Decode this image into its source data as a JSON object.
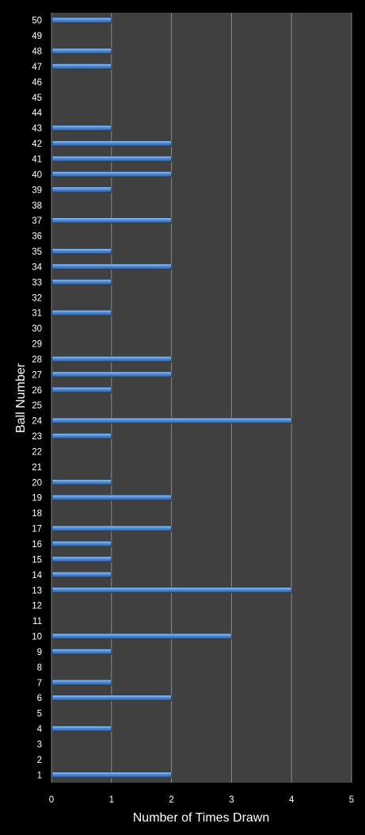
{
  "chart_data": {
    "type": "bar",
    "orientation": "horizontal",
    "title": "",
    "xlabel": "Number of Times Drawn",
    "ylabel": "Ball Number",
    "xlim": [
      0,
      5
    ],
    "xticks": [
      0,
      1,
      2,
      3,
      4,
      5
    ],
    "grid": "vertical",
    "legend": "none",
    "categories": [
      "1",
      "2",
      "3",
      "4",
      "5",
      "6",
      "7",
      "8",
      "9",
      "10",
      "11",
      "12",
      "13",
      "14",
      "15",
      "16",
      "17",
      "18",
      "19",
      "20",
      "21",
      "22",
      "23",
      "24",
      "25",
      "26",
      "27",
      "28",
      "29",
      "30",
      "31",
      "32",
      "33",
      "34",
      "35",
      "36",
      "37",
      "38",
      "39",
      "40",
      "41",
      "42",
      "43",
      "44",
      "45",
      "46",
      "47",
      "48",
      "49",
      "50"
    ],
    "values": [
      2,
      0,
      0,
      1,
      0,
      2,
      1,
      0,
      1,
      3,
      0,
      0,
      4,
      1,
      1,
      1,
      2,
      0,
      2,
      1,
      0,
      0,
      1,
      4,
      0,
      1,
      2,
      2,
      0,
      0,
      1,
      0,
      1,
      2,
      1,
      0,
      2,
      0,
      1,
      2,
      2,
      2,
      1,
      0,
      0,
      0,
      1,
      1,
      0,
      1
    ],
    "colors": {
      "background": "#000000",
      "plot_area": "#404040",
      "bar": "#4f81bd",
      "bar_highlight": "#9cc3f0",
      "grid": "#8c8c8c",
      "text": "#ffffff"
    }
  }
}
